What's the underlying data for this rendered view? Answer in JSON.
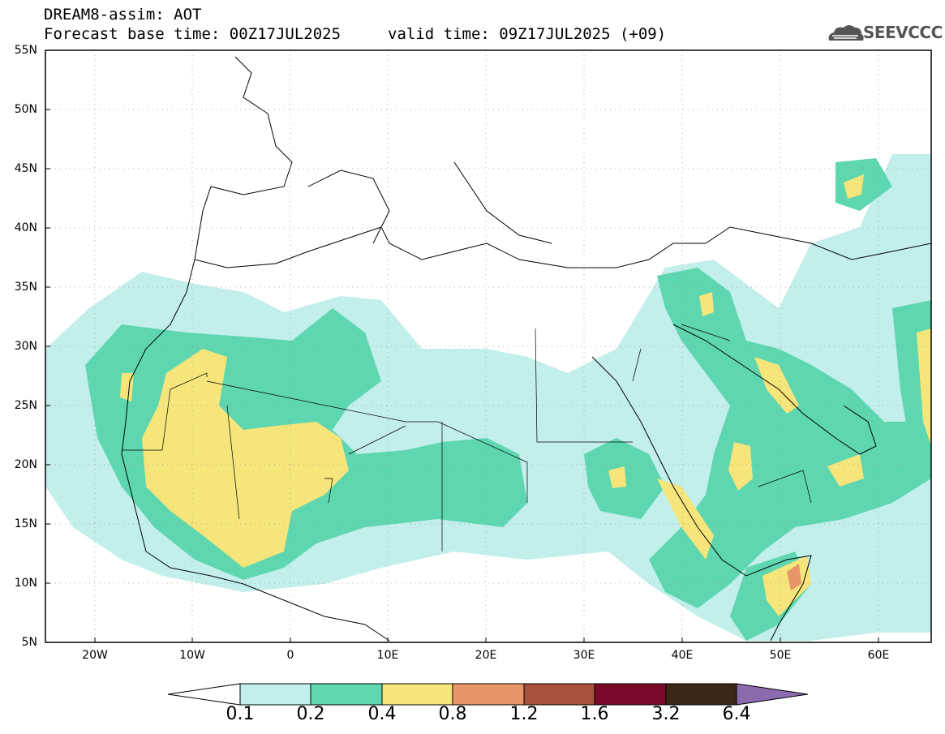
{
  "header": {
    "model_line": "DREAM8-assim: AOT",
    "base_time_line": "Forecast base time: 00Z17JUL2025",
    "valid_time_line": "valid time: 09Z17JUL2025 (+09)"
  },
  "logo": {
    "text": "SEEVCCC",
    "icon": "cloud-icon"
  },
  "map": {
    "lat_labels": [
      "55N",
      "50N",
      "45N",
      "40N",
      "35N",
      "30N",
      "25N",
      "20N",
      "15N",
      "10N",
      "5N"
    ],
    "lon_labels": [
      "20W",
      "10W",
      "0",
      "10E",
      "20E",
      "30E",
      "40E",
      "50E",
      "60E"
    ],
    "lat_range": [
      5,
      55
    ],
    "lon_range": [
      -25,
      65
    ],
    "grid": true,
    "variable": "AOT"
  },
  "colorbar": {
    "labels": [
      "0.1",
      "0.2",
      "0.4",
      "0.8",
      "1.2",
      "1.6",
      "3.2",
      "6.4"
    ],
    "colors": [
      "#ffffff",
      "#c2efe9",
      "#5ed6b0",
      "#f5e57a",
      "#e8956a",
      "#a8503c",
      "#7a0a2a",
      "#3d2716",
      "#8b6bae"
    ]
  }
}
